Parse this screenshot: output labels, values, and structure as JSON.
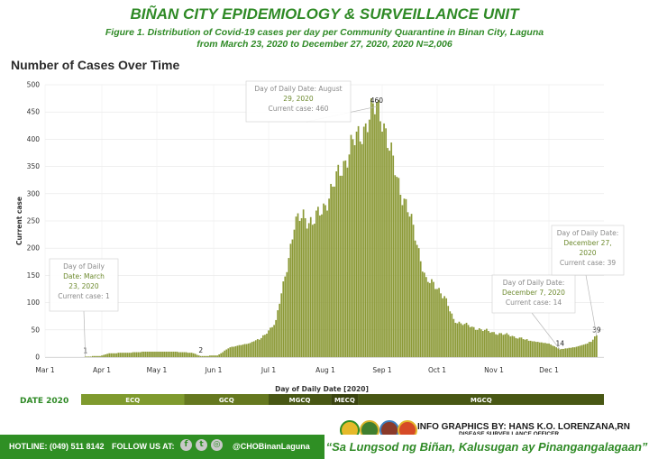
{
  "header": {
    "org_title": "BIÑAN CITY EPIDEMIOLOGY & SURVEILLANCE UNIT",
    "subtitle_line1": "Figure 1. Distribution of Covid-19  cases per day per Community Quarantine in Binan City, Laguna",
    "subtitle_line2": "from March 23, 2020 to December 27, 2020, 2020 N=2,006"
  },
  "chart_heading": "Number of Cases Over Time",
  "chart_data": {
    "type": "bar",
    "xlabel": "Day of Daily Date [2020]",
    "ylabel": "Current case",
    "ylim": [
      0,
      500
    ],
    "y_ticks": [
      0,
      50,
      100,
      150,
      200,
      250,
      300,
      350,
      400,
      450,
      500
    ],
    "x_range": [
      "2020-03-01",
      "2020-12-31"
    ],
    "x_ticks": [
      {
        "date": "2020-03-01",
        "label": "Mar 1"
      },
      {
        "date": "2020-04-01",
        "label": "Apr 1"
      },
      {
        "date": "2020-05-01",
        "label": "May 1"
      },
      {
        "date": "2020-06-01",
        "label": "Jun 1"
      },
      {
        "date": "2020-07-01",
        "label": "Jul 1"
      },
      {
        "date": "2020-08-01",
        "label": "Aug 1"
      },
      {
        "date": "2020-09-01",
        "label": "Sep 1"
      },
      {
        "date": "2020-10-01",
        "label": "Oct 1"
      },
      {
        "date": "2020-11-01",
        "label": "Nov 1"
      },
      {
        "date": "2020-12-01",
        "label": "Dec 1"
      }
    ],
    "grid": true,
    "bar_color": "#8c9a37",
    "series_points": [
      [
        "2020-03-23",
        1
      ],
      [
        "2020-03-31",
        2
      ],
      [
        "2020-04-05",
        7
      ],
      [
        "2020-04-15",
        8
      ],
      [
        "2020-04-25",
        10
      ],
      [
        "2020-05-10",
        10
      ],
      [
        "2020-05-20",
        8
      ],
      [
        "2020-05-25",
        2
      ],
      [
        "2020-06-03",
        3
      ],
      [
        "2020-06-10",
        18
      ],
      [
        "2020-06-20",
        25
      ],
      [
        "2020-06-27",
        34
      ],
      [
        "2020-07-05",
        65
      ],
      [
        "2020-07-10",
        150
      ],
      [
        "2020-07-15",
        240
      ],
      [
        "2020-07-20",
        262
      ],
      [
        "2020-07-25",
        245
      ],
      [
        "2020-07-30",
        270
      ],
      [
        "2020-08-05",
        310
      ],
      [
        "2020-08-10",
        350
      ],
      [
        "2020-08-15",
        385
      ],
      [
        "2020-08-20",
        410
      ],
      [
        "2020-08-25",
        440
      ],
      [
        "2020-08-29",
        460
      ],
      [
        "2020-09-01",
        445
      ],
      [
        "2020-09-05",
        380
      ],
      [
        "2020-09-10",
        320
      ],
      [
        "2020-09-15",
        270
      ],
      [
        "2020-09-20",
        210
      ],
      [
        "2020-09-25",
        140
      ],
      [
        "2020-10-01",
        130
      ],
      [
        "2020-10-05",
        110
      ],
      [
        "2020-10-10",
        68
      ],
      [
        "2020-10-20",
        55
      ],
      [
        "2020-11-01",
        45
      ],
      [
        "2020-11-10",
        40
      ],
      [
        "2020-11-20",
        30
      ],
      [
        "2020-12-01",
        25
      ],
      [
        "2020-12-07",
        14
      ],
      [
        "2020-12-15",
        18
      ],
      [
        "2020-12-22",
        25
      ],
      [
        "2020-12-27",
        39
      ]
    ],
    "data_labels": [
      {
        "date": "2020-03-23",
        "value": 1,
        "text": "1"
      },
      {
        "date": "2020-05-25",
        "value": 2,
        "text": "2"
      },
      {
        "date": "2020-08-29",
        "value": 460,
        "text": "460"
      },
      {
        "date": "2020-12-07",
        "value": 14,
        "text": "14"
      },
      {
        "date": "2020-12-27",
        "value": 39,
        "text": "39"
      }
    ],
    "tooltips": [
      {
        "date": "2020-03-23",
        "value": 1,
        "line1": "Day of Daily",
        "line2": "Date: March",
        "line3": "23, 2020",
        "line4": "Current case: 1"
      },
      {
        "date": "2020-08-29",
        "value": 460,
        "line1": "Day of Daily Date: August",
        "line2": "29, 2020",
        "line3": "",
        "line4": "Current case: 460"
      },
      {
        "date": "2020-12-07",
        "value": 14,
        "line1": "Day of Daily Date:",
        "line2": "December 7, 2020",
        "line3": "",
        "line4": "Current case: 14"
      },
      {
        "date": "2020-12-27",
        "value": 39,
        "line1": "Day of Daily Date:",
        "line2": "December 27,",
        "line3": "2020",
        "line4": "Current case: 39"
      }
    ],
    "quarantine_band": {
      "title": "DATE 2020",
      "segments": [
        {
          "label": "ECQ",
          "start": "2020-03-15",
          "end": "2020-05-16",
          "color": "#7f9a2e"
        },
        {
          "label": "GCQ",
          "start": "2020-05-16",
          "end": "2020-07-01",
          "color": "#65781f"
        },
        {
          "label": "MGCQ",
          "start": "2020-07-01",
          "end": "2020-08-04",
          "color": "#485714"
        },
        {
          "label": "MECQ",
          "start": "2020-08-04",
          "end": "2020-08-19",
          "color": "#39430f"
        },
        {
          "label": "MGCQ",
          "start": "2020-08-19",
          "end": "2020-12-31",
          "color": "#485714"
        }
      ]
    }
  },
  "footer": {
    "credit": "INFO GRAPHICS BY: HANS K.O. LORENZANA,RN",
    "credit_role": "DISEASE SURVEILLANCE OFFICER",
    "hotline": "HOTLINE: (049) 511 8142",
    "follow": "FOLLOW US AT:",
    "social_icons": [
      "facebook-icon",
      "twitter-icon",
      "instagram-icon"
    ],
    "handle": "@CHOBinanLaguna",
    "slogan": "“Sa Lungsod ng Biñan, Kalusugan ay Pinangangalagaan”",
    "logos": [
      "seal-logo-1",
      "seal-logo-2",
      "seal-logo-3",
      "seal-logo-4"
    ]
  }
}
